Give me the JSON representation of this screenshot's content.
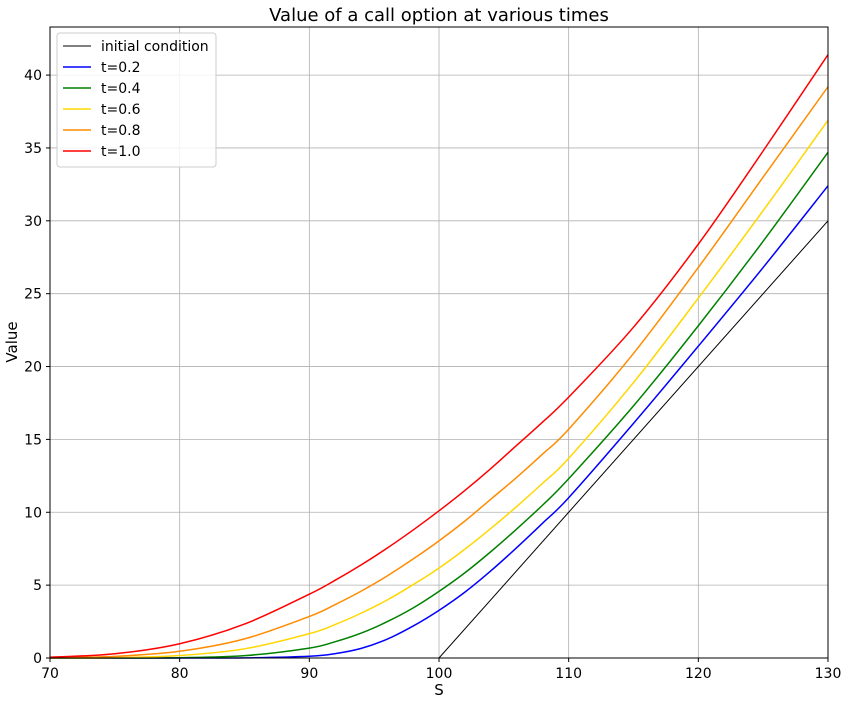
{
  "chart_data": {
    "type": "line",
    "title": "Value of a call option at various times",
    "xlabel": "S",
    "ylabel": "Value",
    "xlim": [
      70,
      130
    ],
    "ylim": [
      0,
      43.3
    ],
    "x_ticks": [
      70,
      80,
      90,
      100,
      110,
      120,
      130
    ],
    "y_ticks": [
      0,
      5,
      10,
      15,
      20,
      25,
      30,
      35,
      40
    ],
    "grid": true,
    "legend_position": "top-left",
    "strike": 100,
    "x": [
      70,
      75,
      80,
      85,
      90,
      92,
      94,
      96,
      98,
      100,
      102,
      104,
      106,
      108,
      110,
      115,
      120,
      125,
      130
    ],
    "series": [
      {
        "name": "initial condition",
        "color": "#000000",
        "values": [
          0,
          0,
          0,
          0,
          0,
          0,
          0,
          0,
          0,
          0,
          2,
          4,
          6,
          8,
          10,
          15,
          20,
          25,
          30
        ]
      },
      {
        "name": "t=0.2",
        "color": "#0000ff",
        "values": [
          0,
          0,
          0,
          0.01,
          0.12,
          0.3,
          0.66,
          1.29,
          2.19,
          3.27,
          4.52,
          5.98,
          7.58,
          9.26,
          11.0,
          16.1,
          21.4,
          26.8,
          32.4
        ]
      },
      {
        "name": "t=0.4",
        "color": "#008000",
        "values": [
          0,
          0,
          0.02,
          0.16,
          0.68,
          1.12,
          1.71,
          2.49,
          3.43,
          4.57,
          5.85,
          7.3,
          8.86,
          10.5,
          12.3,
          17.3,
          22.8,
          28.6,
          34.7
        ]
      },
      {
        "name": "t=0.6",
        "color": "#ffd700",
        "values": [
          0,
          0.02,
          0.17,
          0.63,
          1.67,
          2.3,
          3.08,
          3.98,
          5.03,
          6.17,
          7.47,
          8.89,
          10.4,
          12.0,
          13.7,
          18.9,
          24.7,
          30.7,
          36.9
        ]
      },
      {
        "name": "t=0.8",
        "color": "#ff8c00",
        "values": [
          0.01,
          0.11,
          0.46,
          1.31,
          2.85,
          3.67,
          4.59,
          5.63,
          6.79,
          8.04,
          9.4,
          10.9,
          12.4,
          14.0,
          15.7,
          20.9,
          26.8,
          33.0,
          39.2
        ]
      },
      {
        "name": "t=1.0",
        "color": "#ff0000",
        "values": [
          0.05,
          0.29,
          0.98,
          2.33,
          4.38,
          5.34,
          6.39,
          7.54,
          8.78,
          10.1,
          11.5,
          13.0,
          14.6,
          16.2,
          17.9,
          22.7,
          28.4,
          34.8,
          41.4
        ]
      }
    ]
  }
}
